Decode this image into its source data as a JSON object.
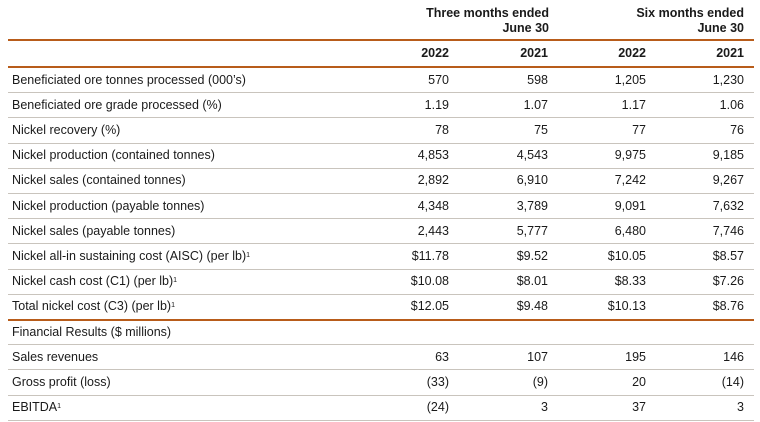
{
  "header": {
    "group1": {
      "line1": "Three months ended",
      "line2": "June 30"
    },
    "group2": {
      "line1": "Six months ended",
      "line2": "June 30"
    },
    "years": [
      "2022",
      "2021",
      "2022",
      "2021"
    ]
  },
  "rows": [
    {
      "label": "Beneficiated ore tonnes processed (000’s)",
      "sup": "",
      "values": [
        "570",
        "598",
        "1,205",
        "1,230"
      ]
    },
    {
      "label": "Beneficiated ore grade processed (%)",
      "sup": "",
      "values": [
        "1.19",
        "1.07",
        "1.17",
        "1.06"
      ]
    },
    {
      "label": "Nickel recovery (%)",
      "sup": "",
      "values": [
        "78",
        "75",
        "77",
        "76"
      ]
    },
    {
      "label": "Nickel production (contained tonnes)",
      "sup": "",
      "values": [
        "4,853",
        "4,543",
        "9,975",
        "9,185"
      ]
    },
    {
      "label": "Nickel sales (contained tonnes)",
      "sup": "",
      "values": [
        "2,892",
        "6,910",
        "7,242",
        "9,267"
      ]
    },
    {
      "label": "Nickel production (payable tonnes)",
      "sup": "",
      "values": [
        "4,348",
        "3,789",
        "9,091",
        "7,632"
      ]
    },
    {
      "label": "Nickel sales (payable tonnes)",
      "sup": "",
      "values": [
        "2,443",
        "5,777",
        "6,480",
        "7,746"
      ]
    },
    {
      "label": "Nickel all-in sustaining cost (AISC) (per lb)",
      "sup": "1",
      "values": [
        "$11.78",
        "$9.52",
        "$10.05",
        "$8.57"
      ]
    },
    {
      "label": "Nickel cash cost (C1) (per lb)",
      "sup": "1",
      "values": [
        "$10.08",
        "$8.01",
        "$8.33",
        "$7.26"
      ]
    },
    {
      "label": "Total nickel cost (C3) (per lb)",
      "sup": "1",
      "values": [
        "$12.05",
        "$9.48",
        "$10.13",
        "$8.76"
      ]
    }
  ],
  "financial": {
    "section_label": "Financial Results ($ millions)",
    "rows": [
      {
        "label": "Sales revenues",
        "sup": "",
        "values": [
          "63",
          "107",
          "195",
          "146"
        ]
      },
      {
        "label": "Gross profit (loss)",
        "sup": "",
        "values": [
          "(33)",
          "(9)",
          "20",
          "(14)"
        ]
      },
      {
        "label": "EBITDA",
        "sup": "1",
        "values": [
          "(24)",
          "3",
          "37",
          "3"
        ]
      }
    ]
  }
}
